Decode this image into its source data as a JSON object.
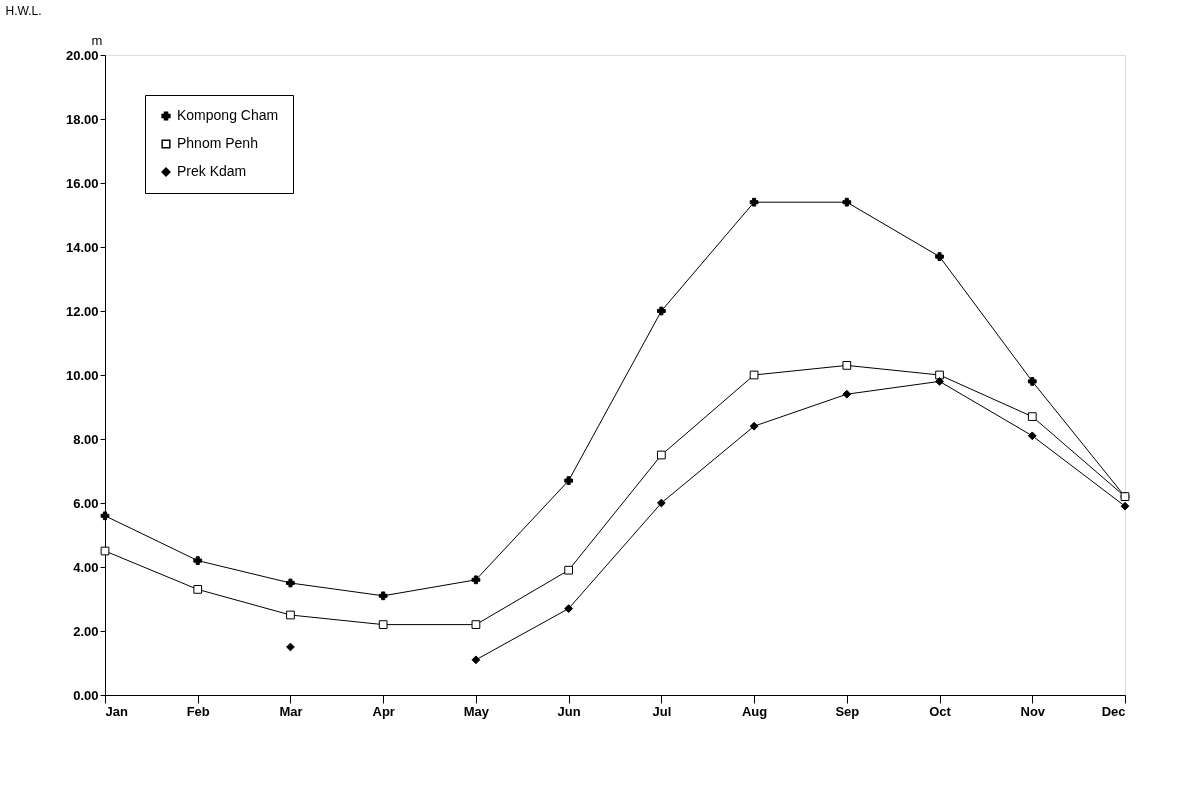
{
  "chart_data": {
    "type": "line",
    "title": "H.W.L.",
    "ylabel": "m",
    "categories": [
      "Jan",
      "Feb",
      "Mar",
      "Apr",
      "May",
      "Jun",
      "Jul",
      "Aug",
      "Sep",
      "Oct",
      "Nov",
      "Dec"
    ],
    "series": [
      {
        "name": "Kompong Cham",
        "color": "#000000",
        "marker": "cross",
        "values": [
          5.6,
          4.2,
          3.5,
          3.1,
          3.6,
          6.7,
          12.0,
          15.4,
          15.4,
          13.7,
          9.8,
          6.2
        ]
      },
      {
        "name": "Phnom Penh",
        "color": "#000000",
        "marker": "square",
        "values": [
          4.5,
          3.3,
          2.5,
          2.2,
          2.2,
          3.9,
          7.5,
          10.0,
          10.3,
          10.0,
          8.7,
          6.2
        ]
      },
      {
        "name": "Prek Kdam",
        "color": "#000000",
        "marker": "diamond",
        "values": [
          null,
          null,
          1.5,
          null,
          1.1,
          2.7,
          6.0,
          8.4,
          9.4,
          9.8,
          8.1,
          5.9
        ]
      }
    ],
    "ylim": [
      0,
      20
    ],
    "yticks": [
      {
        "value": 0,
        "label": "0.00"
      },
      {
        "value": 2,
        "label": "2.00"
      },
      {
        "value": 4,
        "label": "4.00"
      },
      {
        "value": 6,
        "label": "6.00"
      },
      {
        "value": 8,
        "label": "8.00"
      },
      {
        "value": 10,
        "label": "10.00"
      },
      {
        "value": 12,
        "label": "12.00"
      },
      {
        "value": 14,
        "label": "14.00"
      },
      {
        "value": 16,
        "label": "16.00"
      },
      {
        "value": 18,
        "label": "18.00"
      },
      {
        "value": 20,
        "label": "20.00"
      }
    ],
    "grid": false,
    "legend": "top left",
    "line_style": "solid"
  }
}
